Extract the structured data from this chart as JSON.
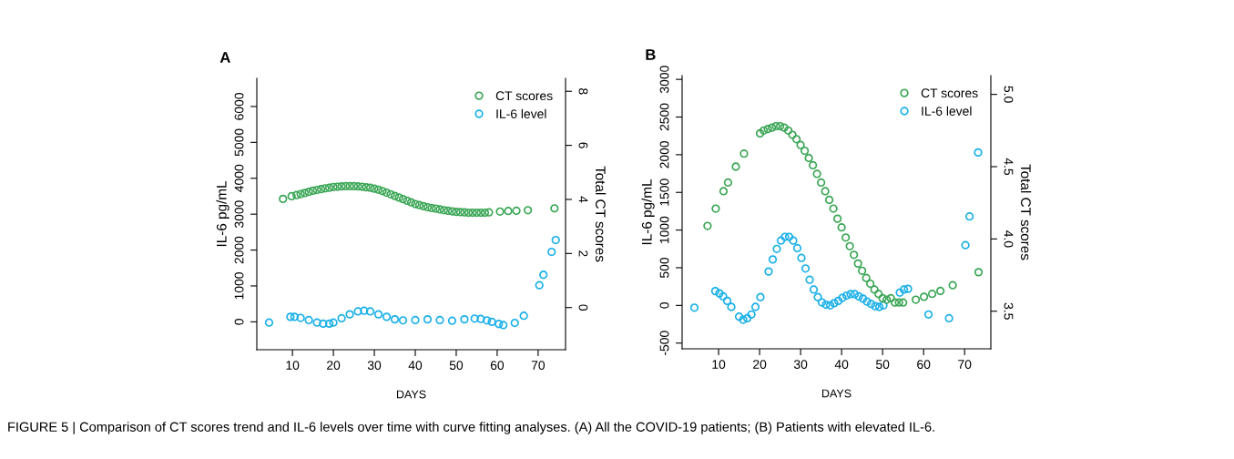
{
  "chart_data": [
    {
      "type": "scatter",
      "title": "A",
      "xlabel": "DAYS",
      "ylabel": "IL-6 pg/mL",
      "y2label": "Total CT scores",
      "marker": "circle",
      "legend": "top right",
      "grid": false,
      "xlim": [
        1.3,
        76.7
      ],
      "xticks": [
        10,
        20,
        30,
        40,
        50,
        60,
        70
      ],
      "ylim": [
        -777,
        6785
      ],
      "yticks": [
        0,
        1000,
        2000,
        3000,
        4000,
        5000,
        6000
      ],
      "y2lim": [
        -1.56,
        8.48
      ],
      "y2ticks": [
        0,
        2,
        4,
        6,
        8
      ],
      "series": [
        {
          "name": "CT scores",
          "color": "#3aa655",
          "axis": "y2",
          "x": [
            7.7,
            9.8,
            11,
            12,
            13,
            14,
            15,
            16,
            17,
            18,
            19,
            20,
            21,
            22,
            23,
            24,
            25,
            26,
            27,
            28,
            29,
            30,
            31,
            32,
            33,
            34,
            35,
            36,
            37,
            38,
            39,
            40,
            41,
            42,
            43,
            44,
            45,
            46,
            47,
            48,
            49,
            50,
            51,
            52,
            53,
            54,
            55,
            56,
            57,
            58,
            60.7,
            62.7,
            64.7,
            67.5,
            74
          ],
          "values": [
            4.02,
            4.12,
            4.16,
            4.2,
            4.24,
            4.28,
            4.32,
            4.35,
            4.38,
            4.41,
            4.43,
            4.46,
            4.47,
            4.48,
            4.49,
            4.49,
            4.49,
            4.48,
            4.47,
            4.45,
            4.43,
            4.4,
            4.36,
            4.31,
            4.25,
            4.19,
            4.13,
            4.07,
            4.01,
            3.95,
            3.89,
            3.83,
            3.79,
            3.75,
            3.71,
            3.68,
            3.66,
            3.63,
            3.6,
            3.58,
            3.56,
            3.54,
            3.53,
            3.52,
            3.51,
            3.51,
            3.51,
            3.51,
            3.51,
            3.52,
            3.55,
            3.57,
            3.58,
            3.6,
            3.67
          ]
        },
        {
          "name": "IL-6 level",
          "color": "#1ab0e8",
          "x": [
            4.3,
            9.5,
            10.5,
            12,
            14,
            16,
            17.5,
            19,
            20,
            22,
            24,
            26,
            27.5,
            29,
            31,
            33,
            35,
            37,
            40,
            43,
            46,
            49,
            52,
            54.5,
            56,
            57.5,
            58.7,
            60.4,
            61.5,
            64.3,
            66.5,
            70.3,
            71.3,
            73.3,
            74.3
          ],
          "values": [
            -20,
            140,
            140,
            110,
            50,
            -20,
            -50,
            -50,
            -20,
            100,
            210,
            290,
            310,
            290,
            210,
            140,
            70,
            40,
            50,
            70,
            50,
            30,
            70,
            90,
            80,
            40,
            0,
            -60,
            -90,
            -30,
            170,
            1020,
            1310,
            1950,
            2280
          ]
        }
      ]
    },
    {
      "type": "scatter",
      "title": "B",
      "xlabel": "DAYS",
      "ylabel": "IL-6 pg/mL",
      "y2label": "Total CT scores",
      "marker": "circle",
      "legend": "top right",
      "grid": false,
      "xlim": [
        1.1,
        76.4
      ],
      "xticks": [
        10,
        20,
        30,
        40,
        50,
        60,
        70
      ],
      "ylim": [
        -576,
        3050
      ],
      "yticks": [
        -500,
        0,
        500,
        1000,
        1500,
        2000,
        2500,
        3000
      ],
      "y2lim": [
        3.24,
        5.13
      ],
      "y2ticks": [
        3.5,
        {
          "value": 4,
          "label": "4.0"
        },
        4.5,
        {
          "value": 5,
          "label": "5.0"
        }
      ],
      "annotations": [
        "FIGURE 5 | Comparison of CT scores trend and IL-6 levels over time with curve fitting analyses. (A) All the COVID-19 patients; (B) Patients with elevated IL-6."
      ],
      "series": [
        {
          "name": "CT scores",
          "color": "#3aa655",
          "axis": "y2",
          "x": [
            7.3,
            9.3,
            11.2,
            12.3,
            14.2,
            16.2,
            20.1,
            21,
            22,
            23,
            24,
            25,
            26,
            27,
            28,
            29,
            30,
            31,
            32,
            33,
            34,
            35,
            36,
            37,
            38,
            39,
            40,
            41,
            42,
            43,
            44,
            45,
            46,
            47,
            48,
            49,
            50,
            51,
            52,
            53,
            54,
            55,
            58.1,
            60.1,
            62.1,
            64.1,
            67.1,
            73.4
          ],
          "values": [
            4.09,
            4.21,
            4.33,
            4.39,
            4.5,
            4.59,
            4.73,
            4.75,
            4.76,
            4.77,
            4.78,
            4.78,
            4.77,
            4.75,
            4.72,
            4.69,
            4.65,
            4.61,
            4.56,
            4.51,
            4.45,
            4.39,
            4.33,
            4.27,
            4.21,
            4.14,
            4.08,
            4.01,
            3.95,
            3.89,
            3.83,
            3.78,
            3.73,
            3.69,
            3.65,
            3.62,
            3.59,
            3.58,
            3.59,
            3.56,
            3.56,
            3.56,
            3.58,
            3.6,
            3.62,
            3.64,
            3.68,
            3.77
          ]
        },
        {
          "name": "IL-6 level",
          "color": "#1ab0e8",
          "x": [
            4.1,
            9.2,
            10.2,
            11.1,
            12.1,
            13.1,
            15,
            16,
            17,
            18,
            19,
            20.2,
            22.2,
            23.2,
            24.2,
            25.2,
            26.2,
            27.2,
            28.2,
            29.2,
            30.2,
            31.2,
            32.2,
            33.2,
            34.2,
            35.2,
            36.2,
            37.2,
            38.2,
            39.2,
            40.2,
            41.2,
            42.2,
            43.2,
            44.2,
            45.2,
            46.2,
            47.2,
            48.2,
            49.2,
            50.2,
            54.2,
            55.2,
            56.2,
            61.2,
            66.2,
            70.2,
            71.2,
            73.3
          ],
          "values": [
            -30,
            190,
            160,
            120,
            60,
            -20,
            -150,
            -190,
            -170,
            -120,
            -20,
            110,
            450,
            610,
            750,
            860,
            910,
            910,
            860,
            760,
            630,
            490,
            340,
            210,
            110,
            40,
            10,
            0,
            30,
            60,
            100,
            130,
            150,
            150,
            120,
            90,
            50,
            20,
            -10,
            -20,
            0,
            170,
            210,
            220,
            -120,
            -170,
            800,
            1180,
            2030
          ]
        }
      ]
    }
  ]
}
